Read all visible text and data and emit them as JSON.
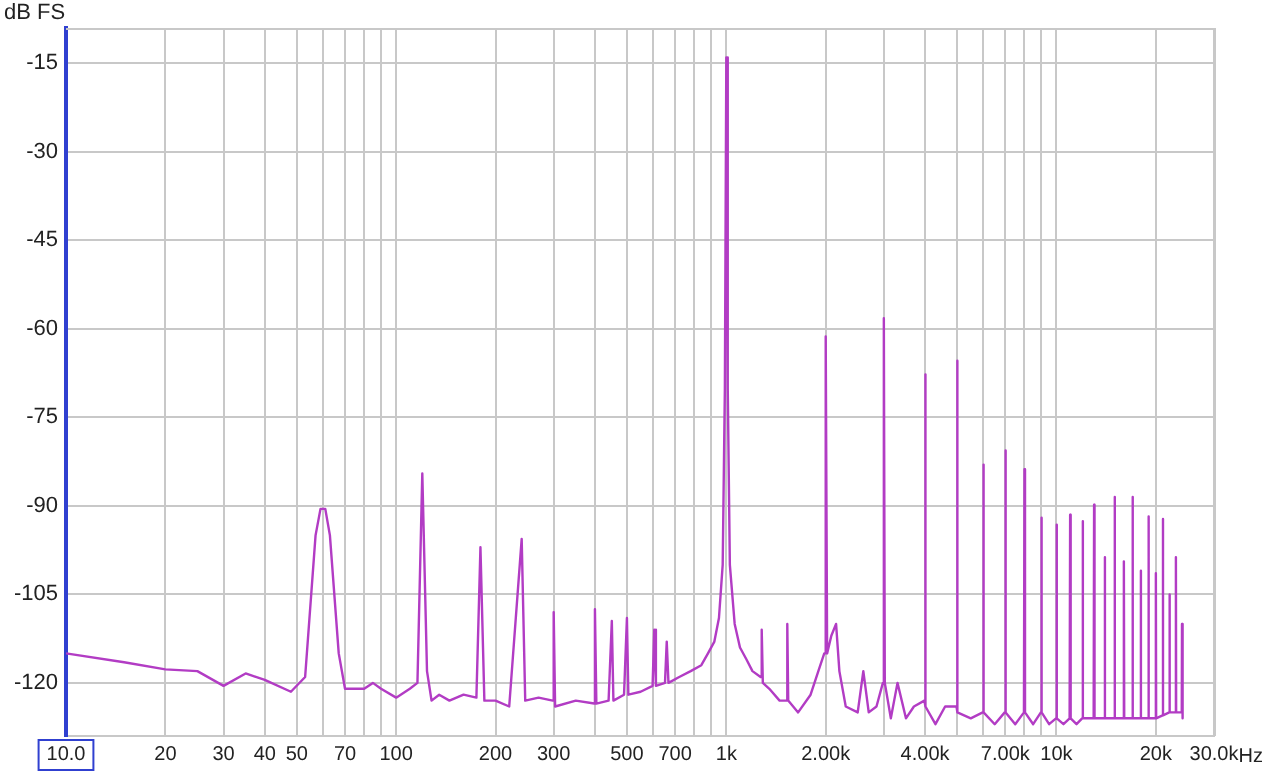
{
  "chart_data": {
    "type": "line",
    "ylabel": "dB FS",
    "xlabel": "Hz",
    "log": "x",
    "grid": true,
    "legend": false,
    "marker": "none",
    "line_style": "solid",
    "xlim": [
      10,
      30000
    ],
    "ylim": [
      -129,
      -9
    ],
    "xticks": [
      {
        "value": 10,
        "label": "10.0"
      },
      20,
      30,
      40,
      50,
      {
        "value": 60,
        "label": null
      },
      70,
      {
        "value": 80,
        "label": null
      },
      {
        "value": 90,
        "label": null
      },
      100,
      200,
      300,
      {
        "value": 400,
        "label": null
      },
      500,
      {
        "value": 600,
        "label": null
      },
      700,
      {
        "value": 800,
        "label": null
      },
      {
        "value": 900,
        "label": null
      },
      {
        "value": 1000,
        "label": "1k"
      },
      {
        "value": 2000,
        "label": "2.00k"
      },
      {
        "value": 3000,
        "label": null
      },
      {
        "value": 4000,
        "label": "4.00k"
      },
      {
        "value": 5000,
        "label": null
      },
      {
        "value": 6000,
        "label": null
      },
      {
        "value": 7000,
        "label": "7.00k"
      },
      {
        "value": 8000,
        "label": null
      },
      {
        "value": 9000,
        "label": null
      },
      {
        "value": 10000,
        "label": "10k"
      },
      {
        "value": 20000,
        "label": "20k"
      },
      {
        "value": 30000,
        "label": "30.0k"
      }
    ],
    "yticks": [
      -15,
      -30,
      -45,
      -60,
      -75,
      -90,
      -105,
      -120
    ],
    "x": [
      10,
      15,
      20,
      25,
      30,
      35,
      40,
      48,
      53,
      57,
      59,
      61,
      63,
      67,
      70,
      80,
      85,
      90,
      100,
      110,
      116,
      120,
      124,
      128,
      135,
      145,
      160,
      175,
      180,
      185,
      200,
      220,
      240,
      246,
      270,
      298,
      300,
      303,
      350,
      398,
      400,
      404,
      440,
      450,
      455,
      490,
      500,
      505,
      550,
      598,
      605,
      612,
      652,
      660,
      668,
      720,
      780,
      840,
      880,
      920,
      950,
      975,
      990,
      1000,
      1010,
      1025,
      1060,
      1100,
      1150,
      1200,
      1270,
      1280,
      1290,
      1350,
      1450,
      1520,
      1530,
      1540,
      1650,
      1800,
      1900,
      1980,
      2000,
      2020,
      2080,
      2150,
      2200,
      2300,
      2500,
      2600,
      2700,
      2850,
      2980,
      3000,
      3020,
      3150,
      3300,
      3500,
      3700,
      3980,
      4000,
      4020,
      4300,
      4600,
      4980,
      5000,
      5020,
      5500,
      5980,
      6000,
      6030,
      6500,
      6970,
      7000,
      7030,
      7500,
      7970,
      8000,
      8030,
      8500,
      8970,
      9000,
      9030,
      9500,
      9970,
      10000,
      10040,
      10500,
      10960,
      11000,
      11040,
      11500,
      11960,
      12000,
      12040,
      12960,
      13000,
      13040,
      13960,
      14000,
      14040,
      14960,
      15000,
      15040,
      15960,
      16000,
      16040,
      16960,
      17000,
      17040,
      17960,
      18000,
      18040,
      18960,
      19000,
      19040,
      19960,
      20000,
      20040,
      20960,
      21000,
      21040,
      21960,
      22000,
      22040,
      22960,
      23000,
      23040,
      23960,
      24000,
      24100
    ],
    "series": [
      {
        "color": "#b23cc4",
        "values": [
          -115,
          -116.5,
          -117.7,
          -118,
          -120.5,
          -118.4,
          -119.5,
          -121.5,
          -119,
          -95,
          -90.5,
          -90.5,
          -95,
          -115,
          -121,
          -121,
          -120,
          -121,
          -122.5,
          -121,
          -120,
          -84.5,
          -118,
          -123,
          -122,
          -123,
          -122,
          -122.5,
          -97,
          -123,
          -123,
          -124,
          -95.6,
          -123,
          -122.5,
          -123,
          -108,
          -124,
          -123,
          -123.5,
          -107.5,
          -123.5,
          -123,
          -109.5,
          -123,
          -122,
          -109,
          -122,
          -121.5,
          -120.5,
          -111,
          -120.5,
          -120,
          -113,
          -120,
          -119,
          -118,
          -117,
          -115,
          -113,
          -109,
          -100,
          -70,
          -14,
          -70,
          -100,
          -110,
          -114,
          -116,
          -118,
          -119,
          -111,
          -120,
          -121,
          -123,
          -123,
          -110,
          -123,
          -125,
          -122,
          -118,
          -115,
          -61.3,
          -115,
          -112,
          -110,
          -118,
          -124,
          -125,
          -118,
          -125,
          -124,
          -120,
          -58.2,
          -120,
          -126,
          -120,
          -126,
          -124,
          -123,
          -67.7,
          -124,
          -127,
          -124,
          -124,
          -65.4,
          -125,
          -126,
          -125,
          -83,
          -125,
          -127,
          -125,
          -80.6,
          -125,
          -127,
          -125,
          -83.8,
          -125,
          -127,
          -125,
          -92,
          -125,
          -127,
          -126,
          -93.2,
          -126,
          -127,
          -126,
          -91.5,
          -126,
          -127,
          -126,
          -92.6,
          -126,
          -126,
          -89.8,
          -126,
          -126,
          -98.7,
          -126,
          -126,
          -88.5,
          -126,
          -126,
          -99.4,
          -126,
          -126,
          -88.5,
          -126,
          -126,
          -101,
          -126,
          -126,
          -91.8,
          -126,
          -126,
          -101.4,
          -126,
          -125.5,
          -92.2,
          -125.5,
          -125,
          -105,
          -125,
          -125,
          -98.7,
          -125,
          -125,
          -110,
          -126
        ]
      }
    ]
  }
}
